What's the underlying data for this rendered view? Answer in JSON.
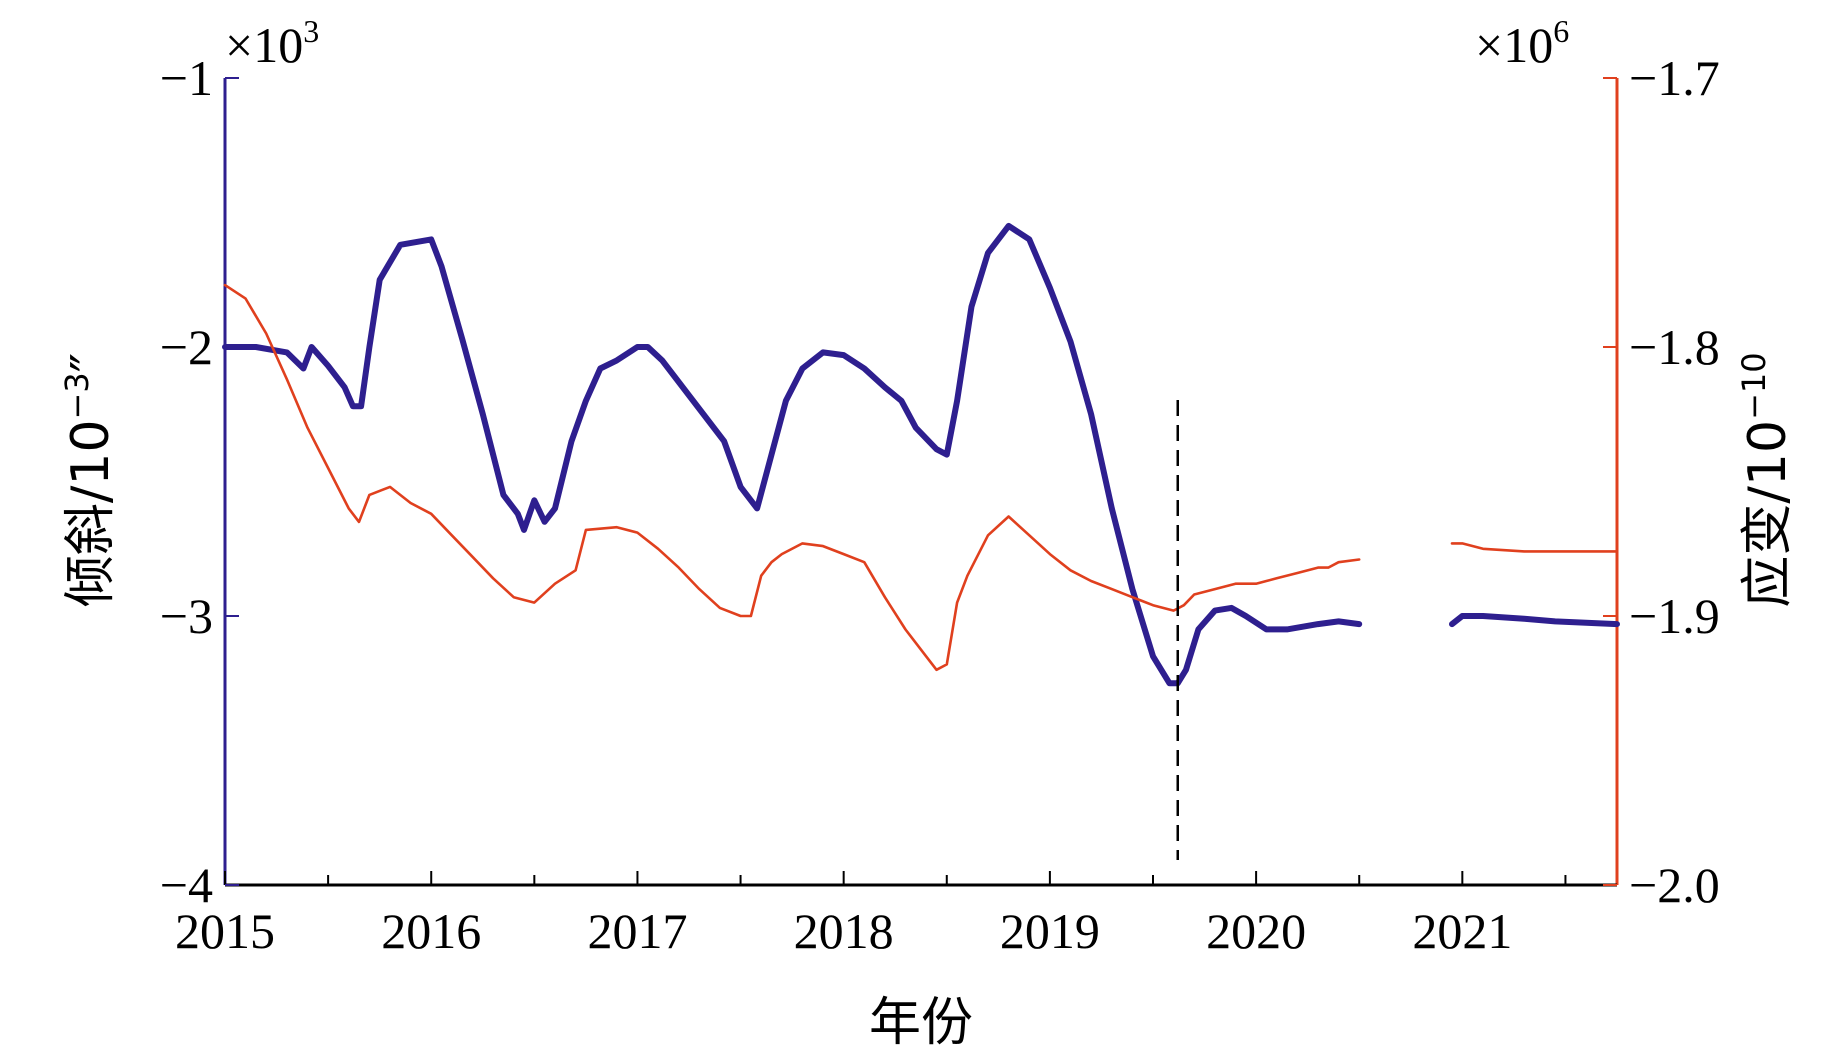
{
  "chart_data": {
    "type": "line",
    "title": "",
    "xlabel": "年份",
    "xlim": [
      2015,
      2021.75
    ],
    "x_ticks": [
      2015,
      2016,
      2017,
      2018,
      2019,
      2020,
      2021
    ],
    "x_tick_labels": [
      "2015",
      "2016",
      "2017",
      "2018",
      "2019",
      "2020",
      "2021"
    ],
    "left_axis": {
      "label_text": "倾斜/10",
      "label_sup": "−3",
      "label_suffix": "″",
      "multiplier": "×10",
      "multiplier_exp": "3",
      "ylim": [
        -4,
        -1
      ],
      "ticks": [
        -4,
        -3,
        -2,
        -1
      ],
      "tick_labels": [
        "−4",
        "−3",
        "−2",
        "−1"
      ],
      "color": "#2e1f8f"
    },
    "right_axis": {
      "label_text": "应变/10",
      "label_sup": "−10",
      "multiplier": "×10",
      "multiplier_exp": "6",
      "ylim": [
        -2.0,
        -1.7
      ],
      "ticks": [
        -2.0,
        -1.9,
        -1.8,
        -1.7
      ],
      "tick_labels": [
        "−2.0",
        "−1.9",
        "−1.8",
        "−1.7"
      ],
      "color": "#e0401e"
    },
    "event_marker_x": 2019.62,
    "series": [
      {
        "axis": "left",
        "color": "#2e1f8f",
        "segments": [
          [
            [
              2015.0,
              -2.0
            ],
            [
              2015.15,
              -2.0
            ],
            [
              2015.3,
              -2.02
            ],
            [
              2015.38,
              -2.08
            ],
            [
              2015.42,
              -2.0
            ],
            [
              2015.5,
              -2.07
            ],
            [
              2015.58,
              -2.15
            ],
            [
              2015.62,
              -2.22
            ],
            [
              2015.66,
              -2.22
            ],
            [
              2015.7,
              -2.0
            ],
            [
              2015.75,
              -1.75
            ],
            [
              2015.85,
              -1.62
            ],
            [
              2016.0,
              -1.6
            ],
            [
              2016.05,
              -1.7
            ],
            [
              2016.15,
              -1.97
            ],
            [
              2016.25,
              -2.25
            ],
            [
              2016.35,
              -2.55
            ],
            [
              2016.42,
              -2.62
            ],
            [
              2016.45,
              -2.68
            ],
            [
              2016.5,
              -2.57
            ],
            [
              2016.55,
              -2.65
            ],
            [
              2016.6,
              -2.6
            ],
            [
              2016.68,
              -2.35
            ],
            [
              2016.75,
              -2.2
            ],
            [
              2016.82,
              -2.08
            ],
            [
              2016.9,
              -2.05
            ],
            [
              2017.0,
              -2.0
            ],
            [
              2017.05,
              -2.0
            ],
            [
              2017.12,
              -2.05
            ],
            [
              2017.22,
              -2.15
            ],
            [
              2017.32,
              -2.25
            ],
            [
              2017.42,
              -2.35
            ],
            [
              2017.5,
              -2.52
            ],
            [
              2017.58,
              -2.6
            ],
            [
              2017.65,
              -2.4
            ],
            [
              2017.72,
              -2.2
            ],
            [
              2017.8,
              -2.08
            ],
            [
              2017.9,
              -2.02
            ],
            [
              2018.0,
              -2.03
            ],
            [
              2018.1,
              -2.08
            ],
            [
              2018.2,
              -2.15
            ],
            [
              2018.28,
              -2.2
            ],
            [
              2018.35,
              -2.3
            ],
            [
              2018.45,
              -2.38
            ],
            [
              2018.5,
              -2.4
            ],
            [
              2018.55,
              -2.2
            ],
            [
              2018.62,
              -1.85
            ],
            [
              2018.7,
              -1.65
            ],
            [
              2018.8,
              -1.55
            ],
            [
              2018.9,
              -1.6
            ],
            [
              2019.0,
              -1.78
            ],
            [
              2019.1,
              -1.98
            ],
            [
              2019.2,
              -2.25
            ],
            [
              2019.3,
              -2.6
            ],
            [
              2019.4,
              -2.9
            ],
            [
              2019.5,
              -3.15
            ],
            [
              2019.58,
              -3.25
            ],
            [
              2019.62,
              -3.25
            ],
            [
              2019.66,
              -3.2
            ],
            [
              2019.72,
              -3.05
            ],
            [
              2019.8,
              -2.98
            ],
            [
              2019.88,
              -2.97
            ],
            [
              2019.95,
              -3.0
            ],
            [
              2020.05,
              -3.05
            ],
            [
              2020.15,
              -3.05
            ],
            [
              2020.3,
              -3.03
            ],
            [
              2020.4,
              -3.02
            ],
            [
              2020.5,
              -3.03
            ]
          ],
          [
            [
              2020.95,
              -3.03
            ],
            [
              2021.0,
              -3.0
            ],
            [
              2021.1,
              -3.0
            ],
            [
              2021.3,
              -3.01
            ],
            [
              2021.45,
              -3.02
            ],
            [
              2021.75,
              -3.03
            ]
          ]
        ]
      },
      {
        "axis": "right",
        "color": "#e0401e",
        "segments": [
          [
            [
              2015.0,
              -1.777
            ],
            [
              2015.1,
              -1.782
            ],
            [
              2015.2,
              -1.795
            ],
            [
              2015.3,
              -1.812
            ],
            [
              2015.4,
              -1.83
            ],
            [
              2015.5,
              -1.845
            ],
            [
              2015.6,
              -1.86
            ],
            [
              2015.65,
              -1.865
            ],
            [
              2015.7,
              -1.855
            ],
            [
              2015.8,
              -1.852
            ],
            [
              2015.9,
              -1.858
            ],
            [
              2016.0,
              -1.862
            ],
            [
              2016.1,
              -1.87
            ],
            [
              2016.2,
              -1.878
            ],
            [
              2016.3,
              -1.886
            ],
            [
              2016.4,
              -1.893
            ],
            [
              2016.5,
              -1.895
            ],
            [
              2016.6,
              -1.888
            ],
            [
              2016.7,
              -1.883
            ],
            [
              2016.75,
              -1.868
            ],
            [
              2016.9,
              -1.867
            ],
            [
              2017.0,
              -1.869
            ],
            [
              2017.1,
              -1.875
            ],
            [
              2017.2,
              -1.882
            ],
            [
              2017.3,
              -1.89
            ],
            [
              2017.4,
              -1.897
            ],
            [
              2017.5,
              -1.9
            ],
            [
              2017.55,
              -1.9
            ],
            [
              2017.6,
              -1.885
            ],
            [
              2017.65,
              -1.88
            ],
            [
              2017.7,
              -1.877
            ],
            [
              2017.8,
              -1.873
            ],
            [
              2017.9,
              -1.874
            ],
            [
              2018.0,
              -1.877
            ],
            [
              2018.1,
              -1.88
            ],
            [
              2018.2,
              -1.893
            ],
            [
              2018.3,
              -1.905
            ],
            [
              2018.4,
              -1.915
            ],
            [
              2018.45,
              -1.92
            ],
            [
              2018.5,
              -1.918
            ],
            [
              2018.55,
              -1.895
            ],
            [
              2018.6,
              -1.885
            ],
            [
              2018.7,
              -1.87
            ],
            [
              2018.8,
              -1.863
            ],
            [
              2018.9,
              -1.87
            ],
            [
              2019.0,
              -1.877
            ],
            [
              2019.1,
              -1.883
            ],
            [
              2019.2,
              -1.887
            ],
            [
              2019.3,
              -1.89
            ],
            [
              2019.4,
              -1.893
            ],
            [
              2019.5,
              -1.896
            ],
            [
              2019.6,
              -1.898
            ],
            [
              2019.65,
              -1.896
            ],
            [
              2019.7,
              -1.892
            ],
            [
              2019.8,
              -1.89
            ],
            [
              2019.9,
              -1.888
            ],
            [
              2020.0,
              -1.888
            ],
            [
              2020.05,
              -1.887
            ],
            [
              2020.1,
              -1.886
            ],
            [
              2020.2,
              -1.884
            ],
            [
              2020.3,
              -1.882
            ],
            [
              2020.35,
              -1.882
            ],
            [
              2020.4,
              -1.88
            ],
            [
              2020.5,
              -1.879
            ]
          ],
          [
            [
              2020.95,
              -1.873
            ],
            [
              2021.0,
              -1.873
            ],
            [
              2021.1,
              -1.875
            ],
            [
              2021.3,
              -1.876
            ],
            [
              2021.5,
              -1.876
            ],
            [
              2021.75,
              -1.876
            ]
          ]
        ]
      }
    ]
  }
}
